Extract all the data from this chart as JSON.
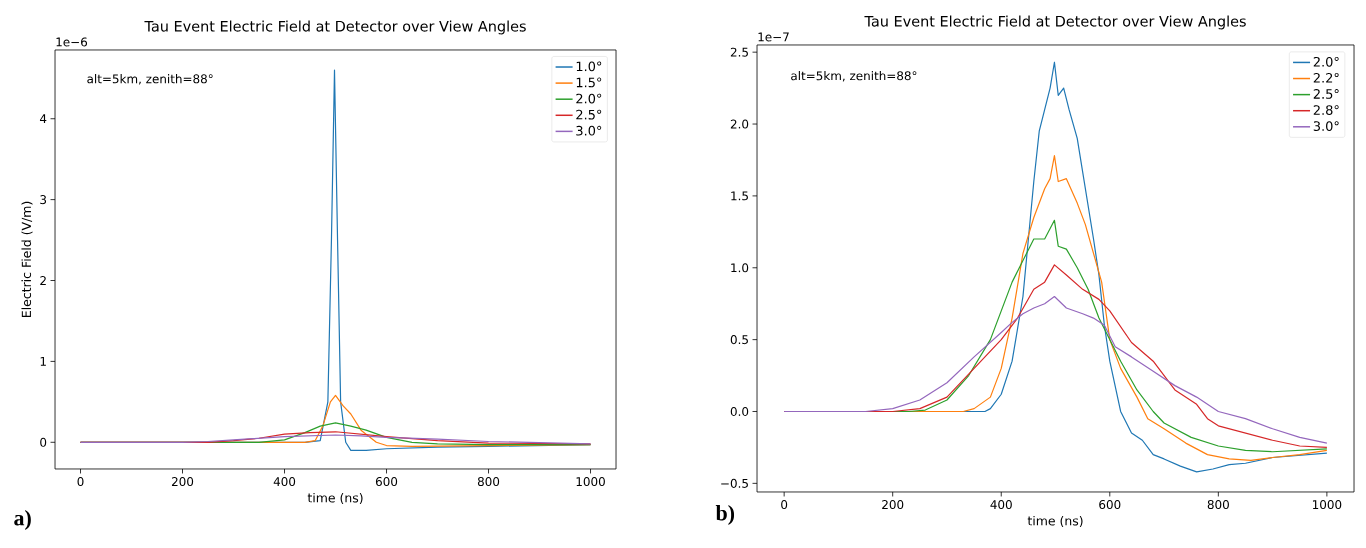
{
  "chart_data": [
    {
      "type": "line",
      "title": "Tau Event Electric Field at Detector over View Angles",
      "xlabel": "time (ns)",
      "ylabel": "Electric Field (V/m)",
      "annotations": [
        "alt=5km, zenith=88°",
        "1e−6",
        "a)"
      ],
      "xlim": [
        -50,
        1050
      ],
      "ylim": [
        -0.33,
        4.85
      ],
      "xticks": [
        0,
        200,
        400,
        600,
        800,
        1000
      ],
      "yticks": [
        0,
        1,
        2,
        3,
        4
      ],
      "legend": "top right",
      "series": [
        {
          "name": "1.0°",
          "color": "#1f77b4",
          "x": [
            0,
            440,
            470,
            485,
            492,
            498,
            504,
            510,
            520,
            530,
            560,
            600,
            700,
            800,
            1000
          ],
          "values": [
            0,
            0,
            0.02,
            0.5,
            2.5,
            4.6,
            2.5,
            0.5,
            0,
            -0.1,
            -0.1,
            -0.08,
            -0.06,
            -0.05,
            -0.03
          ]
        },
        {
          "name": "1.5°",
          "color": "#ff7f0e",
          "x": [
            0,
            440,
            460,
            475,
            490,
            500,
            515,
            530,
            550,
            580,
            600,
            650,
            800,
            1000
          ],
          "values": [
            0,
            0,
            0.02,
            0.2,
            0.5,
            0.58,
            0.45,
            0.35,
            0.15,
            0,
            -0.04,
            -0.05,
            -0.04,
            -0.03
          ]
        },
        {
          "name": "2.0°",
          "color": "#2ca02c",
          "x": [
            0,
            350,
            400,
            440,
            470,
            500,
            530,
            560,
            600,
            650,
            700,
            800,
            1000
          ],
          "values": [
            0,
            0,
            0.03,
            0.12,
            0.2,
            0.24,
            0.2,
            0.15,
            0.06,
            0,
            -0.02,
            -0.03,
            -0.03
          ]
        },
        {
          "name": "2.5°",
          "color": "#d62728",
          "x": [
            0,
            250,
            300,
            350,
            400,
            450,
            500,
            550,
            600,
            700,
            800,
            1000
          ],
          "values": [
            0,
            0,
            0.02,
            0.05,
            0.1,
            0.12,
            0.13,
            0.1,
            0.07,
            0.02,
            -0.01,
            -0.02
          ]
        },
        {
          "name": "3.0°",
          "color": "#9467bd",
          "x": [
            0,
            200,
            250,
            300,
            400,
            500,
            550,
            600,
            700,
            800,
            1000
          ],
          "values": [
            0,
            0,
            0.01,
            0.03,
            0.07,
            0.09,
            0.08,
            0.06,
            0.04,
            0.01,
            -0.02
          ]
        }
      ]
    },
    {
      "type": "line",
      "title": "Tau Event Electric Field at Detector over View Angles",
      "xlabel": "time (ns)",
      "annotations": [
        "alt=5km, zenith=88°",
        "1e−7",
        "b)"
      ],
      "xlim": [
        -50,
        1050
      ],
      "ylim": [
        -0.56,
        2.55
      ],
      "xticks": [
        0,
        200,
        400,
        600,
        800,
        1000
      ],
      "yticks": [
        {
          "value": -0.5,
          "label": "−0.5"
        },
        {
          "value": 0,
          "label": "0.0"
        },
        {
          "value": 0.5,
          "label": "0.5"
        },
        {
          "value": 1,
          "label": "1.0"
        },
        {
          "value": 1.5,
          "label": "1.5"
        },
        {
          "value": 2,
          "label": "2.0"
        },
        {
          "value": 2.5,
          "label": "2.5"
        }
      ],
      "legend": "top right",
      "series": [
        {
          "name": "2.0°",
          "color": "#1f77b4",
          "x": [
            0,
            370,
            380,
            400,
            420,
            440,
            450,
            460,
            470,
            480,
            490,
            498,
            505,
            515,
            525,
            540,
            555,
            570,
            580,
            590,
            600,
            620,
            640,
            660,
            680,
            700,
            730,
            760,
            790,
            820,
            850,
            900,
            950,
            1000
          ],
          "values": [
            0,
            0,
            0.02,
            0.12,
            0.35,
            0.8,
            1.2,
            1.6,
            1.95,
            2.1,
            2.25,
            2.43,
            2.2,
            2.25,
            2.1,
            1.9,
            1.55,
            1.2,
            0.95,
            0.6,
            0.35,
            0,
            -0.15,
            -0.2,
            -0.3,
            -0.33,
            -0.38,
            -0.42,
            -0.4,
            -0.37,
            -0.36,
            -0.32,
            null,
            -0.29
          ]
        },
        {
          "name": "2.2°",
          "color": "#ff7f0e",
          "x": [
            0,
            330,
            350,
            380,
            400,
            420,
            440,
            460,
            480,
            490,
            498,
            505,
            520,
            540,
            555,
            570,
            585,
            600,
            620,
            650,
            670,
            700,
            740,
            780,
            820,
            860,
            900,
            950,
            1000
          ],
          "values": [
            0,
            0,
            0.02,
            0.1,
            0.3,
            0.65,
            1.1,
            1.35,
            1.55,
            1.62,
            1.78,
            1.6,
            1.62,
            1.45,
            1.3,
            1.1,
            0.9,
            0.5,
            0.3,
            0.1,
            -0.05,
            -0.12,
            -0.22,
            -0.3,
            -0.33,
            -0.34,
            -0.32,
            -0.3,
            -0.27
          ]
        },
        {
          "name": "2.5°",
          "color": "#2ca02c",
          "x": [
            0,
            230,
            260,
            300,
            340,
            380,
            400,
            420,
            440,
            460,
            480,
            498,
            505,
            520,
            540,
            560,
            580,
            600,
            620,
            650,
            680,
            700,
            750,
            800,
            850,
            900,
            1000
          ],
          "values": [
            0,
            0,
            0.01,
            0.08,
            0.25,
            0.5,
            0.7,
            0.9,
            1.05,
            1.2,
            1.2,
            1.33,
            1.15,
            1.13,
            1,
            0.85,
            0.65,
            0.5,
            0.35,
            0.15,
            0,
            -0.08,
            -0.18,
            -0.24,
            -0.27,
            -0.28,
            -0.26
          ]
        },
        {
          "name": "2.8°",
          "color": "#d62728",
          "x": [
            0,
            200,
            250,
            300,
            350,
            400,
            430,
            460,
            480,
            498,
            520,
            550,
            580,
            600,
            640,
            680,
            720,
            760,
            780,
            800,
            850,
            900,
            950,
            1000
          ],
          "values": [
            0,
            0,
            0.02,
            0.1,
            0.3,
            0.5,
            0.65,
            0.85,
            0.9,
            1.02,
            0.95,
            0.85,
            0.78,
            0.7,
            0.48,
            0.35,
            0.15,
            0.05,
            -0.05,
            -0.1,
            -0.15,
            -0.2,
            -0.24,
            -0.25
          ]
        },
        {
          "name": "3.0°",
          "color": "#9467bd",
          "x": [
            0,
            150,
            200,
            250,
            300,
            350,
            400,
            420,
            440,
            460,
            480,
            498,
            520,
            550,
            570,
            590,
            610,
            640,
            680,
            720,
            760,
            800,
            850,
            900,
            950,
            1000
          ],
          "values": [
            0,
            0,
            0.02,
            0.08,
            0.2,
            0.38,
            0.55,
            0.62,
            0.68,
            0.72,
            0.75,
            0.8,
            0.72,
            0.68,
            0.65,
            0.6,
            0.45,
            0.38,
            0.28,
            0.18,
            0.1,
            0,
            -0.05,
            -0.12,
            -0.18,
            -0.22
          ]
        }
      ]
    }
  ]
}
